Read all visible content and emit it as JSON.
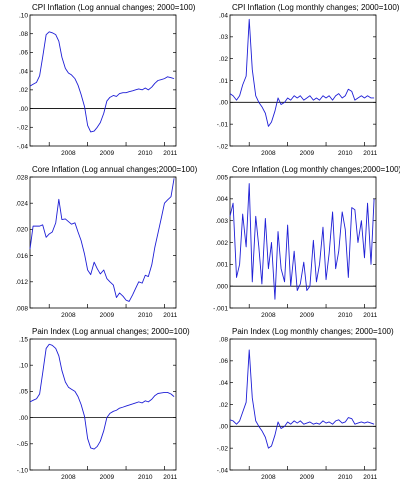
{
  "chart_data": [
    {
      "type": "line",
      "title": "CPI Inflation (Log annual changes; 2000=100)",
      "ylim": [
        -0.04,
        0.1
      ],
      "y_ticks": [
        ".10",
        ".08",
        ".06",
        ".04",
        ".02",
        ".00",
        "-.02",
        "-.04"
      ],
      "y_tick_values": [
        0.1,
        0.08,
        0.06,
        0.04,
        0.02,
        0.0,
        -0.02,
        -0.04
      ],
      "xlim": [
        2007.5,
        2011.3
      ],
      "x_ticks": [
        "2008",
        "2009",
        "2010",
        "2011"
      ],
      "x_tick_values": [
        2008,
        2009,
        2010,
        2011
      ],
      "zero_line": 0,
      "series": [
        {
          "x": [
            2007.5,
            2007.58,
            2007.67,
            2007.75,
            2007.83,
            2007.92,
            2008.0,
            2008.08,
            2008.17,
            2008.25,
            2008.33,
            2008.42,
            2008.5,
            2008.58,
            2008.67,
            2008.75,
            2008.83,
            2008.92,
            2009.0,
            2009.08,
            2009.17,
            2009.25,
            2009.33,
            2009.42,
            2009.5,
            2009.58,
            2009.67,
            2009.75,
            2009.83,
            2009.92,
            2010.0,
            2010.08,
            2010.17,
            2010.25,
            2010.33,
            2010.42,
            2010.5,
            2010.58,
            2010.67,
            2010.75,
            2010.83,
            2010.92,
            2011.0,
            2011.08,
            2011.17,
            2011.25
          ],
          "values": [
            0.024,
            0.026,
            0.028,
            0.035,
            0.055,
            0.079,
            0.082,
            0.081,
            0.079,
            0.072,
            0.055,
            0.043,
            0.038,
            0.036,
            0.032,
            0.025,
            0.015,
            0.002,
            -0.018,
            -0.025,
            -0.024,
            -0.02,
            -0.015,
            -0.005,
            0.008,
            0.012,
            0.014,
            0.013,
            0.016,
            0.017,
            0.017,
            0.018,
            0.019,
            0.02,
            0.021,
            0.02,
            0.022,
            0.02,
            0.023,
            0.027,
            0.03,
            0.031,
            0.032,
            0.034,
            0.033,
            0.032
          ]
        }
      ]
    },
    {
      "type": "line",
      "title": "CPI Inflation (Log monthly changes; 2000=100)",
      "ylim": [
        -0.02,
        0.04
      ],
      "y_ticks": [
        ".04",
        ".03",
        ".02",
        ".01",
        ".00",
        "-.01",
        "-.02"
      ],
      "y_tick_values": [
        0.04,
        0.03,
        0.02,
        0.01,
        0.0,
        -0.01,
        -0.02
      ],
      "xlim": [
        2007.5,
        2011.3
      ],
      "x_ticks": [
        "2008",
        "2009",
        "2010",
        "2011"
      ],
      "x_tick_values": [
        2008,
        2009,
        2010,
        2011
      ],
      "zero_line": 0,
      "series": [
        {
          "x": [
            2007.5,
            2007.58,
            2007.67,
            2007.75,
            2007.83,
            2007.92,
            2008.0,
            2008.08,
            2008.17,
            2008.25,
            2008.33,
            2008.42,
            2008.5,
            2008.58,
            2008.67,
            2008.75,
            2008.83,
            2008.92,
            2009.0,
            2009.08,
            2009.17,
            2009.25,
            2009.33,
            2009.42,
            2009.5,
            2009.58,
            2009.67,
            2009.75,
            2009.83,
            2009.92,
            2010.0,
            2010.08,
            2010.17,
            2010.25,
            2010.33,
            2010.42,
            2010.5,
            2010.58,
            2010.67,
            2010.75,
            2010.83,
            2010.92,
            2011.0,
            2011.08,
            2011.17,
            2011.25
          ],
          "values": [
            0.004,
            0.003,
            0.001,
            0.003,
            0.008,
            0.012,
            0.038,
            0.015,
            0.003,
            0.0,
            -0.002,
            -0.005,
            -0.011,
            -0.009,
            -0.004,
            0.002,
            -0.001,
            0.0,
            0.002,
            0.001,
            0.003,
            0.002,
            0.003,
            0.001,
            0.002,
            0.003,
            0.001,
            0.002,
            0.001,
            0.003,
            0.002,
            0.003,
            0.001,
            0.003,
            0.004,
            0.002,
            0.003,
            0.006,
            0.005,
            0.001,
            0.002,
            0.003,
            0.002,
            0.003,
            0.002,
            0.002
          ]
        }
      ]
    },
    {
      "type": "line",
      "title": "Core Inflation (Log annual changes;2000=100)",
      "ylim": [
        0.008,
        0.028
      ],
      "y_ticks": [
        ".028",
        ".024",
        ".020",
        ".016",
        ".012",
        ".008"
      ],
      "y_tick_values": [
        0.028,
        0.024,
        0.02,
        0.016,
        0.012,
        0.008
      ],
      "xlim": [
        2007.5,
        2011.3
      ],
      "x_ticks": [
        "2008",
        "2009",
        "2010",
        "2011"
      ],
      "x_tick_values": [
        2008,
        2009,
        2010,
        2011
      ],
      "series": [
        {
          "x": [
            2007.5,
            2007.58,
            2007.67,
            2007.75,
            2007.83,
            2007.92,
            2008.0,
            2008.08,
            2008.17,
            2008.25,
            2008.33,
            2008.42,
            2008.5,
            2008.58,
            2008.67,
            2008.75,
            2008.83,
            2008.92,
            2009.0,
            2009.08,
            2009.17,
            2009.25,
            2009.33,
            2009.42,
            2009.5,
            2009.58,
            2009.67,
            2009.75,
            2009.83,
            2009.92,
            2010.0,
            2010.08,
            2010.17,
            2010.25,
            2010.33,
            2010.42,
            2010.5,
            2010.58,
            2010.67,
            2010.75,
            2010.83,
            2010.92,
            2011.0,
            2011.08,
            2011.17,
            2011.25
          ],
          "values": [
            0.017,
            0.0205,
            0.0205,
            0.0205,
            0.0207,
            0.0188,
            0.0193,
            0.0196,
            0.021,
            0.0246,
            0.0215,
            0.0216,
            0.0212,
            0.0208,
            0.021,
            0.0196,
            0.0183,
            0.0162,
            0.0138,
            0.0131,
            0.015,
            0.014,
            0.0132,
            0.0138,
            0.0125,
            0.012,
            0.0115,
            0.0096,
            0.0103,
            0.0098,
            0.0092,
            0.009,
            0.01,
            0.011,
            0.012,
            0.0118,
            0.013,
            0.0128,
            0.0146,
            0.0173,
            0.0194,
            0.0218,
            0.024,
            0.0245,
            0.025,
            0.0278
          ]
        }
      ]
    },
    {
      "type": "line",
      "title": "Core Inflation (Log monthly changes;2000=100)",
      "ylim": [
        -0.001,
        0.005
      ],
      "y_ticks": [
        ".005",
        ".004",
        ".003",
        ".002",
        ".001",
        ".000",
        "-.001"
      ],
      "y_tick_values": [
        0.005,
        0.004,
        0.003,
        0.002,
        0.001,
        0.0,
        -0.001
      ],
      "xlim": [
        2007.5,
        2011.3
      ],
      "x_ticks": [
        "2008",
        "2009",
        "2010",
        "2011"
      ],
      "x_tick_values": [
        2008,
        2009,
        2010,
        2011
      ],
      "zero_line": 0,
      "series": [
        {
          "x": [
            2007.5,
            2007.58,
            2007.67,
            2007.75,
            2007.83,
            2007.92,
            2008.0,
            2008.08,
            2008.17,
            2008.25,
            2008.33,
            2008.42,
            2008.5,
            2008.58,
            2008.67,
            2008.75,
            2008.83,
            2008.92,
            2009.0,
            2009.08,
            2009.17,
            2009.25,
            2009.33,
            2009.42,
            2009.5,
            2009.58,
            2009.67,
            2009.75,
            2009.83,
            2009.92,
            2010.0,
            2010.08,
            2010.17,
            2010.25,
            2010.33,
            2010.42,
            2010.5,
            2010.58,
            2010.67,
            2010.75,
            2010.83,
            2010.92,
            2011.0,
            2011.08,
            2011.17,
            2011.25
          ],
          "values": [
            0.0032,
            0.0038,
            0.0004,
            0.001,
            0.0033,
            0.0018,
            0.0047,
            0.0002,
            0.0032,
            0.0018,
            0.0001,
            0.0031,
            0.0008,
            0.002,
            -0.0006,
            0.0025,
            0.0008,
            0.0002,
            0.0028,
            0.0,
            0.0016,
            -0.0002,
            0.0001,
            0.0011,
            -0.0002,
            0.0,
            0.0021,
            0.0002,
            0.001,
            0.0027,
            0.0003,
            0.0015,
            0.0034,
            0.0008,
            0.0016,
            0.0034,
            0.0026,
            0.0004,
            0.0036,
            0.0035,
            0.002,
            0.003,
            0.0013,
            0.0038,
            0.001,
            0.004
          ]
        }
      ]
    },
    {
      "type": "line",
      "title": "Pain Index (Log annual changes; 2000=100)",
      "ylim": [
        -0.1,
        0.15
      ],
      "y_ticks": [
        ".15",
        ".10",
        ".05",
        ".00",
        "-.05",
        "-.10"
      ],
      "y_tick_values": [
        0.15,
        0.1,
        0.05,
        0.0,
        -0.05,
        -0.1
      ],
      "xlim": [
        2007.5,
        2011.3
      ],
      "x_ticks": [
        "2008",
        "2009",
        "2010",
        "2011"
      ],
      "x_tick_values": [
        2008,
        2009,
        2010,
        2011
      ],
      "zero_line": 0,
      "series": [
        {
          "x": [
            2007.5,
            2007.58,
            2007.67,
            2007.75,
            2007.83,
            2007.92,
            2008.0,
            2008.08,
            2008.17,
            2008.25,
            2008.33,
            2008.42,
            2008.5,
            2008.58,
            2008.67,
            2008.75,
            2008.83,
            2008.92,
            2009.0,
            2009.08,
            2009.17,
            2009.25,
            2009.33,
            2009.42,
            2009.5,
            2009.58,
            2009.67,
            2009.75,
            2009.83,
            2009.92,
            2010.0,
            2010.08,
            2010.17,
            2010.25,
            2010.33,
            2010.42,
            2010.5,
            2010.58,
            2010.67,
            2010.75,
            2010.83,
            2010.92,
            2011.0,
            2011.08,
            2011.17,
            2011.25
          ],
          "values": [
            0.03,
            0.033,
            0.036,
            0.045,
            0.085,
            0.132,
            0.14,
            0.138,
            0.132,
            0.118,
            0.09,
            0.068,
            0.058,
            0.054,
            0.05,
            0.04,
            0.025,
            0.002,
            -0.04,
            -0.058,
            -0.06,
            -0.055,
            -0.045,
            -0.025,
            0.0,
            0.008,
            0.012,
            0.014,
            0.018,
            0.02,
            0.022,
            0.024,
            0.026,
            0.028,
            0.03,
            0.028,
            0.032,
            0.03,
            0.035,
            0.042,
            0.046,
            0.047,
            0.048,
            0.048,
            0.045,
            0.04
          ]
        }
      ]
    },
    {
      "type": "line",
      "title": "Pain Index (Log monthly changes; 2000=100)",
      "ylim": [
        -0.04,
        0.08
      ],
      "y_ticks": [
        ".08",
        ".06",
        ".04",
        ".02",
        ".00",
        "-.02",
        "-.04"
      ],
      "y_tick_values": [
        0.08,
        0.06,
        0.04,
        0.02,
        0.0,
        -0.02,
        -0.04
      ],
      "xlim": [
        2007.5,
        2011.3
      ],
      "x_ticks": [
        "2008",
        "2009",
        "2010",
        "2011"
      ],
      "x_tick_values": [
        2008,
        2009,
        2010,
        2011
      ],
      "zero_line": 0,
      "series": [
        {
          "x": [
            2007.5,
            2007.58,
            2007.67,
            2007.75,
            2007.83,
            2007.92,
            2008.0,
            2008.08,
            2008.17,
            2008.25,
            2008.33,
            2008.42,
            2008.5,
            2008.58,
            2008.67,
            2008.75,
            2008.83,
            2008.92,
            2009.0,
            2009.08,
            2009.17,
            2009.25,
            2009.33,
            2009.42,
            2009.5,
            2009.58,
            2009.67,
            2009.75,
            2009.83,
            2009.92,
            2010.0,
            2010.08,
            2010.17,
            2010.25,
            2010.33,
            2010.42,
            2010.5,
            2010.58,
            2010.67,
            2010.75,
            2010.83,
            2010.92,
            2011.0,
            2011.08,
            2011.17,
            2011.25
          ],
          "values": [
            0.006,
            0.005,
            0.002,
            0.005,
            0.013,
            0.022,
            0.07,
            0.026,
            0.005,
            0.0,
            -0.004,
            -0.01,
            -0.02,
            -0.018,
            -0.008,
            0.004,
            -0.002,
            0.0,
            0.004,
            0.002,
            0.005,
            0.003,
            0.005,
            0.002,
            0.003,
            0.004,
            0.002,
            0.003,
            0.002,
            0.005,
            0.003,
            0.004,
            0.002,
            0.005,
            0.006,
            0.003,
            0.004,
            0.008,
            0.007,
            0.002,
            0.003,
            0.004,
            0.003,
            0.004,
            0.003,
            0.002
          ]
        }
      ]
    }
  ]
}
